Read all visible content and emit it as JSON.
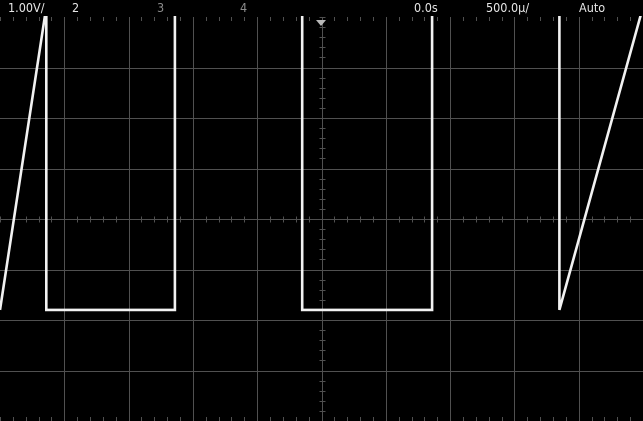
{
  "status": {
    "ch1_scale": "1.00V/",
    "ch2_label": "2",
    "ch3_label": "3",
    "ch4_label": "4",
    "time_offset": "0.0s",
    "time_scale": "500.0µ/",
    "trigger_mode": "Auto"
  },
  "display": {
    "background": "#000000",
    "grid_color": "#505050",
    "trace_color": "#f2f2f2",
    "grid_divisions": {
      "horizontal": 10,
      "vertical": 8
    },
    "trigger_marker_icon": "trigger-position-triangle"
  },
  "waveform": {
    "type": "square",
    "high_div": 4.2,
    "low_div": -1.8,
    "edges_us": [
      -3125,
      -2140,
      -1140,
      -150,
      860,
      1850,
      2860
    ]
  }
}
